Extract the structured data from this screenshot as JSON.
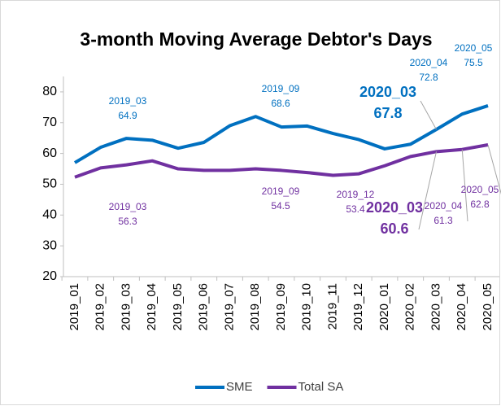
{
  "chart_data": {
    "type": "line",
    "title": "3-month Moving Average Debtor's Days",
    "categories": [
      "2019_01",
      "2019_02",
      "2019_03",
      "2019_04",
      "2019_05",
      "2019_06",
      "2019_07",
      "2019_08",
      "2019_09",
      "2019_10",
      "2019_11",
      "2019_12",
      "2020_01",
      "2020_02",
      "2020_03",
      "2020_04",
      "2020_05"
    ],
    "series": [
      {
        "name": "SME",
        "color": "#0070c0",
        "values": [
          57,
          62,
          64.9,
          64.3,
          61.7,
          63.6,
          69,
          72,
          68.6,
          68.9,
          66.5,
          64.5,
          61.5,
          63,
          67.8,
          72.8,
          75.5
        ],
        "value_labels": [
          null,
          null,
          "64.9",
          null,
          null,
          null,
          null,
          null,
          "68.6",
          null,
          null,
          null,
          null,
          null,
          "67.8",
          "72.8",
          "75.5"
        ]
      },
      {
        "name": "Total SA",
        "color": "#7030a0",
        "values": [
          52.3,
          55.3,
          56.3,
          57.6,
          55,
          54.5,
          54.5,
          55,
          54.5,
          53.8,
          52.9,
          53.4,
          56,
          59,
          60.6,
          61.3,
          62.8
        ],
        "value_labels": [
          null,
          null,
          "56.3",
          null,
          null,
          null,
          null,
          null,
          "54.5",
          null,
          null,
          "53.4",
          null,
          null,
          "60.6",
          "61.3",
          "62.8"
        ]
      }
    ],
    "ylim": [
      20,
      85
    ],
    "yticks": [
      20,
      30,
      40,
      50,
      60,
      70,
      80
    ],
    "grid": false,
    "legend": "bottom"
  }
}
